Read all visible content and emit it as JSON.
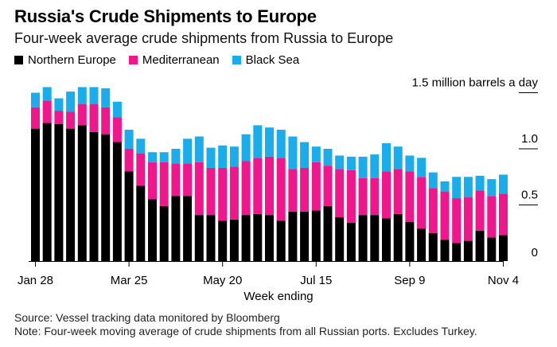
{
  "title": "Russia's Crude Shipments to Europe",
  "subtitle": "Four-week average crude shipments from Russia to Europe",
  "legend": [
    {
      "label": "Northern Europe",
      "color": "#000000"
    },
    {
      "label": "Mediterranean",
      "color": "#f0168c"
    },
    {
      "label": "Black Sea",
      "color": "#1aaceb"
    }
  ],
  "xlabel": "Week ending",
  "source": "Source: Vessel tracking data monitored by Bloomberg",
  "note": "Note: Four-week moving average of crude shipments from all Russian ports. Excludes Turkey.",
  "chart_data": {
    "type": "bar",
    "stacked": true,
    "ylim": [
      0,
      1.5
    ],
    "yticks": [
      {
        "value": 0,
        "label": "0"
      },
      {
        "value": 0.5,
        "label": "0.5"
      },
      {
        "value": 1.0,
        "label": "1.0"
      },
      {
        "value": 1.5,
        "label": "1.5 million barrels a day"
      }
    ],
    "xtick_labels": [
      {
        "index": 0,
        "label": "Jan 28"
      },
      {
        "index": 8,
        "label": "Mar 25"
      },
      {
        "index": 16,
        "label": "May 20"
      },
      {
        "index": 24,
        "label": "Jul 15"
      },
      {
        "index": 32,
        "label": "Sep 9"
      },
      {
        "index": 40,
        "label": "Nov 4"
      }
    ],
    "series": [
      {
        "name": "Northern Europe",
        "color": "#000000",
        "values": [
          1.18,
          1.23,
          1.22,
          1.18,
          1.21,
          1.15,
          1.13,
          1.06,
          0.8,
          0.67,
          0.55,
          0.49,
          0.58,
          0.58,
          0.41,
          0.41,
          0.36,
          0.37,
          0.41,
          0.42,
          0.41,
          0.36,
          0.44,
          0.44,
          0.45,
          0.49,
          0.39,
          0.34,
          0.41,
          0.41,
          0.38,
          0.42,
          0.35,
          0.29,
          0.25,
          0.19,
          0.16,
          0.18,
          0.27,
          0.21,
          0.23
        ]
      },
      {
        "name": "Mediterranean",
        "color": "#f0168c",
        "values": [
          0.19,
          0.2,
          0.12,
          0.15,
          0.19,
          0.25,
          0.24,
          0.22,
          0.2,
          0.29,
          0.33,
          0.39,
          0.29,
          0.29,
          0.47,
          0.42,
          0.47,
          0.47,
          0.48,
          0.5,
          0.52,
          0.56,
          0.38,
          0.39,
          0.43,
          0.36,
          0.43,
          0.47,
          0.33,
          0.33,
          0.42,
          0.4,
          0.45,
          0.46,
          0.4,
          0.43,
          0.4,
          0.39,
          0.36,
          0.37,
          0.37
        ]
      },
      {
        "name": "Black Sea",
        "color": "#1aaceb",
        "values": [
          0.13,
          0.12,
          0.11,
          0.18,
          0.15,
          0.15,
          0.17,
          0.14,
          0.17,
          0.13,
          0.09,
          0.09,
          0.13,
          0.22,
          0.23,
          0.18,
          0.2,
          0.18,
          0.24,
          0.29,
          0.26,
          0.25,
          0.29,
          0.23,
          0.14,
          0.15,
          0.12,
          0.12,
          0.19,
          0.21,
          0.25,
          0.2,
          0.14,
          0.17,
          0.14,
          0.09,
          0.19,
          0.18,
          0.13,
          0.15,
          0.17
        ]
      }
    ]
  }
}
